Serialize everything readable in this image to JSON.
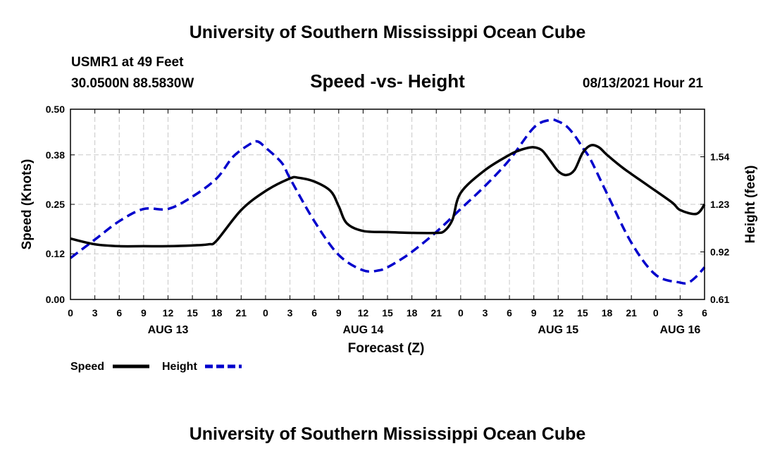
{
  "header": {
    "title": "University of Southern Mississippi Ocean Cube",
    "station": "USMR1 at 49 Feet",
    "coords": "30.0500N  88.5830W",
    "datetime": "08/13/2021 Hour 21"
  },
  "footer": {
    "title": "University of Southern Mississippi Ocean Cube"
  },
  "chart_data": {
    "type": "line",
    "title": "Speed -vs- Height",
    "xlabel": "Forecast (Z)",
    "ylabel": "Speed (Knots)",
    "y2label": "Height (feet)",
    "x_hours": [
      0,
      3,
      6,
      9,
      12,
      15,
      18,
      21,
      24,
      27,
      30,
      33,
      36,
      39,
      42,
      45,
      48,
      51,
      54,
      57,
      60,
      63,
      66,
      69,
      72,
      75,
      78
    ],
    "x_tick_labels": [
      "0",
      "3",
      "6",
      "9",
      "12",
      "15",
      "18",
      "21",
      "0",
      "3",
      "6",
      "9",
      "12",
      "15",
      "18",
      "21",
      "0",
      "3",
      "6",
      "9",
      "12",
      "15",
      "18",
      "21",
      "0",
      "3",
      "6"
    ],
    "date_labels": [
      {
        "label": "AUG 13",
        "hour": 12
      },
      {
        "label": "AUG 14",
        "hour": 36
      },
      {
        "label": "AUG 15",
        "hour": 60
      },
      {
        "label": "AUG 16",
        "hour": 75
      }
    ],
    "ylim": [
      0,
      0.5
    ],
    "y_ticks": [
      "0.00",
      "0.12",
      "0.25",
      "0.38",
      "0.50"
    ],
    "y2lim": [
      0.61,
      1.85
    ],
    "y2_ticks": [
      "0.61",
      "0.92",
      "1.23",
      "1.54"
    ],
    "grid": true,
    "legend": [
      {
        "name": "Speed",
        "color": "#000000",
        "style": "solid"
      },
      {
        "name": "Height",
        "color": "#0000cc",
        "style": "dashed"
      }
    ],
    "series": [
      {
        "name": "Speed",
        "axis": "left",
        "color": "#000000",
        "x": [
          0,
          3,
          6,
          9,
          12,
          15,
          17,
          18,
          21,
          24,
          27,
          28,
          30,
          32,
          33,
          34,
          36,
          39,
          42,
          45,
          46,
          47,
          48,
          51,
          54,
          55,
          56,
          57,
          58,
          59,
          60,
          61,
          62,
          63,
          64,
          65,
          66,
          68,
          71,
          74,
          75,
          77,
          78
        ],
        "values": [
          0.16,
          0.145,
          0.14,
          0.14,
          0.14,
          0.142,
          0.145,
          0.155,
          0.235,
          0.285,
          0.318,
          0.32,
          0.31,
          0.285,
          0.245,
          0.2,
          0.18,
          0.177,
          0.175,
          0.175,
          0.18,
          0.21,
          0.28,
          0.34,
          0.38,
          0.39,
          0.397,
          0.4,
          0.392,
          0.365,
          0.337,
          0.327,
          0.34,
          0.385,
          0.405,
          0.4,
          0.38,
          0.345,
          0.3,
          0.255,
          0.235,
          0.225,
          0.25
        ]
      },
      {
        "name": "Height",
        "axis": "right",
        "color": "#0000cc",
        "x": [
          0,
          3,
          6,
          9,
          12,
          15,
          18,
          20,
          22,
          23,
          24,
          26,
          27,
          30,
          33,
          36,
          38,
          39,
          40,
          42,
          45,
          48,
          51,
          54,
          57,
          59,
          60,
          61,
          62,
          63,
          64,
          66,
          69,
          72,
          75,
          76,
          77,
          78
        ],
        "values": [
          0.88,
          1.0,
          1.12,
          1.2,
          1.2,
          1.28,
          1.4,
          1.54,
          1.62,
          1.64,
          1.6,
          1.5,
          1.4,
          1.12,
          0.9,
          0.8,
          0.8,
          0.82,
          0.85,
          0.92,
          1.05,
          1.2,
          1.35,
          1.52,
          1.73,
          1.78,
          1.77,
          1.74,
          1.68,
          1.6,
          1.52,
          1.3,
          0.98,
          0.77,
          0.72,
          0.72,
          0.76,
          0.82
        ]
      }
    ]
  }
}
